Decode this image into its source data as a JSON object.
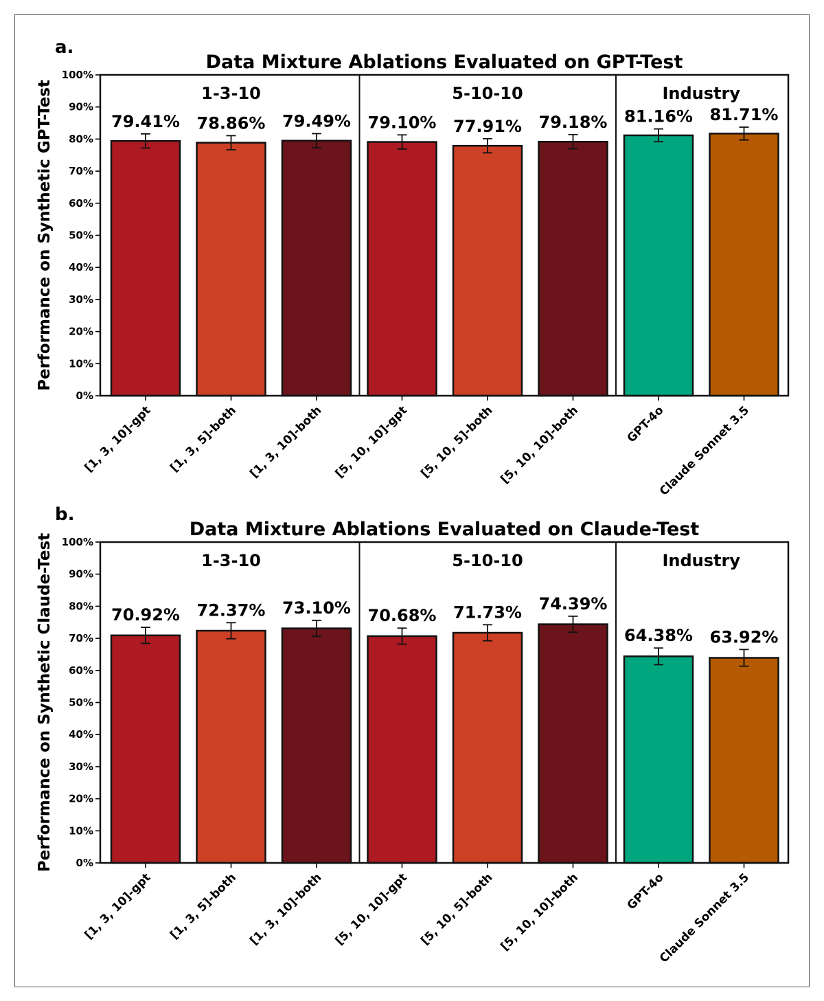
{
  "chart_data": [
    {
      "type": "bar",
      "panel_label": "a.",
      "title": "Data Mixture Ablations Evaluated on GPT-Test",
      "ylabel": "Performance on Synthetic GPT-Test",
      "xlabel": "",
      "ylim": [
        0,
        100
      ],
      "yticks": [
        "0%",
        "10%",
        "20%",
        "30%",
        "40%",
        "50%",
        "60%",
        "70%",
        "80%",
        "90%",
        "100%"
      ],
      "categories": [
        "[1, 3, 10]-gpt",
        "[1, 3, 5]-both",
        "[1, 3, 10]-both",
        "[5, 10, 10]-gpt",
        "[5, 10, 5]-both",
        "[5, 10, 10]-both",
        "GPT-4o",
        "Claude Sonnet 3.5"
      ],
      "values": [
        79.41,
        78.86,
        79.49,
        79.1,
        77.91,
        79.18,
        81.16,
        81.71
      ],
      "error": [
        2.2,
        2.2,
        2.2,
        2.2,
        2.2,
        2.2,
        2.0,
        2.0
      ],
      "value_labels": [
        "79.41%",
        "78.86%",
        "79.49%",
        "79.10%",
        "77.91%",
        "79.18%",
        "81.16%",
        "81.71%"
      ],
      "colors": [
        "#ad1a22",
        "#cc4026",
        "#6b141b",
        "#ad1a22",
        "#cc4026",
        "#6b141b",
        "#00a67e",
        "#b55a00"
      ],
      "groups": [
        {
          "label": "1-3-10",
          "start": 0,
          "end": 2
        },
        {
          "label": "5-10-10",
          "start": 3,
          "end": 5
        },
        {
          "label": "Industry",
          "start": 6,
          "end": 7
        }
      ],
      "grid": false
    },
    {
      "type": "bar",
      "panel_label": "b.",
      "title": "Data Mixture Ablations Evaluated on Claude-Test",
      "ylabel": "Performance on Synthetic Claude-Test",
      "xlabel": "",
      "ylim": [
        0,
        100
      ],
      "yticks": [
        "0%",
        "10%",
        "20%",
        "30%",
        "40%",
        "50%",
        "60%",
        "70%",
        "80%",
        "90%",
        "100%"
      ],
      "categories": [
        "[1, 3, 10]-gpt",
        "[1, 3, 5]-both",
        "[1, 3, 10]-both",
        "[5, 10, 10]-gpt",
        "[5, 10, 5]-both",
        "[5, 10, 10]-both",
        "GPT-4o",
        "Claude Sonnet 3.5"
      ],
      "values": [
        70.92,
        72.37,
        73.1,
        70.68,
        71.73,
        74.39,
        64.38,
        63.92
      ],
      "error": [
        2.5,
        2.5,
        2.5,
        2.5,
        2.5,
        2.5,
        2.6,
        2.6
      ],
      "value_labels": [
        "70.92%",
        "72.37%",
        "73.10%",
        "70.68%",
        "71.73%",
        "74.39%",
        "64.38%",
        "63.92%"
      ],
      "colors": [
        "#ad1a22",
        "#cc4026",
        "#6b141b",
        "#ad1a22",
        "#cc4026",
        "#6b141b",
        "#00a67e",
        "#b55a00"
      ],
      "groups": [
        {
          "label": "1-3-10",
          "start": 0,
          "end": 2
        },
        {
          "label": "5-10-10",
          "start": 3,
          "end": 5
        },
        {
          "label": "Industry",
          "start": 6,
          "end": 7
        }
      ],
      "grid": false
    }
  ]
}
